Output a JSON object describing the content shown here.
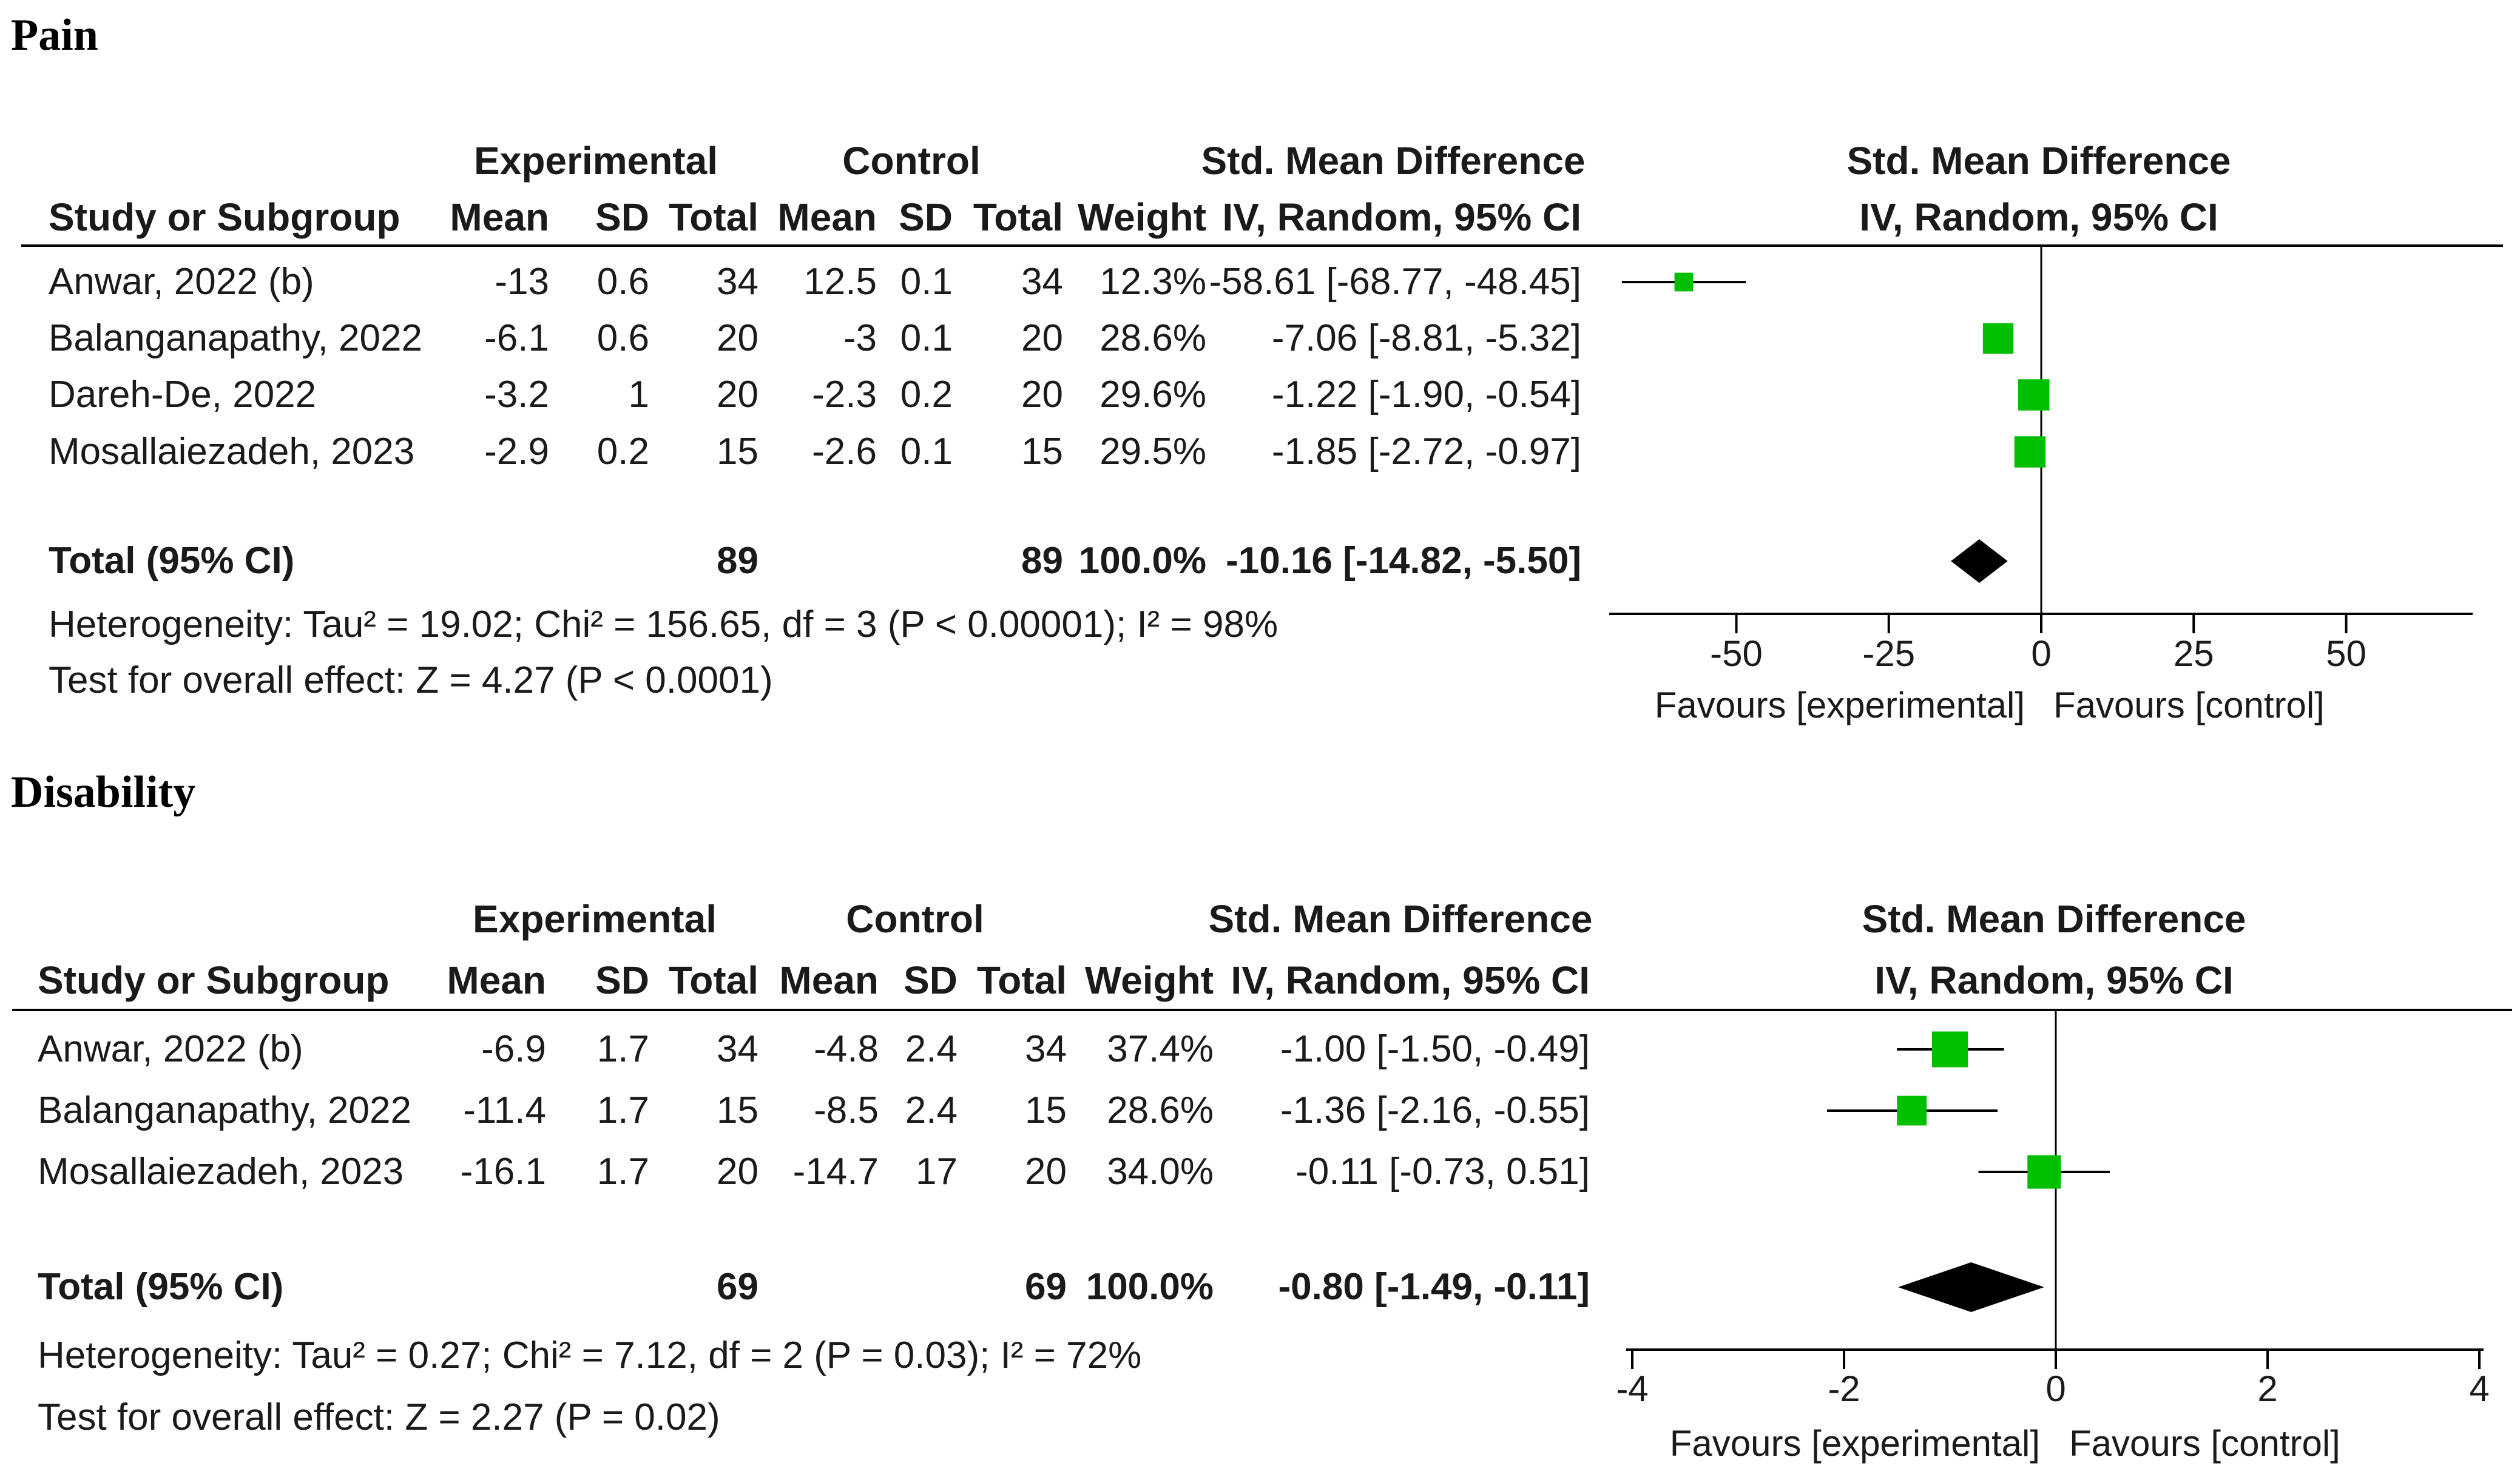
{
  "chart_data": [
    {
      "type": "forest",
      "title": "Pain",
      "group_headers": {
        "experimental": "Experimental",
        "control": "Control",
        "smd": "Std. Mean Difference",
        "plot": "Std. Mean Difference"
      },
      "column_headers": {
        "study": "Study or Subgroup",
        "mean": "Mean",
        "sd": "SD",
        "total": "Total",
        "weight": "Weight",
        "ci": "IV, Random, 95% CI",
        "plot_ci": "IV, Random, 95% CI"
      },
      "studies": [
        {
          "name": "Anwar, 2022 (b)",
          "exp_mean": "-13",
          "exp_sd": "0.6",
          "exp_total": "34",
          "ctl_mean": "12.5",
          "ctl_sd": "0.1",
          "ctl_total": "34",
          "weight": "12.3%",
          "ci": "-58.61 [-68.77, -48.45]",
          "est": -58.61,
          "lo": -68.77,
          "hi": -48.45,
          "w": 12.3
        },
        {
          "name": "Balanganapathy, 2022",
          "exp_mean": "-6.1",
          "exp_sd": "0.6",
          "exp_total": "20",
          "ctl_mean": "-3",
          "ctl_sd": "0.1",
          "ctl_total": "20",
          "weight": "28.6%",
          "ci": "-7.06 [-8.81, -5.32]",
          "est": -7.06,
          "lo": -8.81,
          "hi": -5.32,
          "w": 28.6
        },
        {
          "name": "Dareh-De, 2022",
          "exp_mean": "-3.2",
          "exp_sd": "1",
          "exp_total": "20",
          "ctl_mean": "-2.3",
          "ctl_sd": "0.2",
          "ctl_total": "20",
          "weight": "29.6%",
          "ci": "-1.22 [-1.90, -0.54]",
          "est": -1.22,
          "lo": -1.9,
          "hi": -0.54,
          "w": 29.6
        },
        {
          "name": "Mosallaiezadeh, 2023",
          "exp_mean": "-2.9",
          "exp_sd": "0.2",
          "exp_total": "15",
          "ctl_mean": "-2.6",
          "ctl_sd": "0.1",
          "ctl_total": "15",
          "weight": "29.5%",
          "ci": "-1.85 [-2.72, -0.97]",
          "est": -1.85,
          "lo": -2.72,
          "hi": -0.97,
          "w": 29.5
        }
      ],
      "total": {
        "label": "Total (95% CI)",
        "exp_total": "89",
        "ctl_total": "89",
        "weight": "100.0%",
        "ci": "-10.16 [-14.82, -5.50]",
        "est": -10.16,
        "lo": -14.82,
        "hi": -5.5
      },
      "heterogeneity": "Heterogeneity: Tau² = 19.02; Chi² = 156.65, df = 3 (P < 0.00001); I² = 98%",
      "overall_effect": "Test for overall effect: Z = 4.27 (P < 0.0001)",
      "axis": {
        "range": [
          -70,
          70
        ],
        "ticks": [
          -50,
          -25,
          0,
          25,
          50
        ],
        "tick_labels": [
          "-50",
          "-25",
          "0",
          "25",
          "50"
        ]
      },
      "favours": {
        "left": "Favours [experimental]",
        "right": "Favours [control]"
      }
    },
    {
      "type": "forest",
      "title": "Disability",
      "group_headers": {
        "experimental": "Experimental",
        "control": "Control",
        "smd": "Std. Mean Difference",
        "plot": "Std. Mean Difference"
      },
      "column_headers": {
        "study": "Study or Subgroup",
        "mean": "Mean",
        "sd": "SD",
        "total": "Total",
        "weight": "Weight",
        "ci": "IV, Random, 95% CI",
        "plot_ci": "IV, Random, 95% CI"
      },
      "studies": [
        {
          "name": "Anwar, 2022 (b)",
          "exp_mean": "-6.9",
          "exp_sd": "1.7",
          "exp_total": "34",
          "ctl_mean": "-4.8",
          "ctl_sd": "2.4",
          "ctl_total": "34",
          "weight": "37.4%",
          "ci": "-1.00 [-1.50, -0.49]",
          "est": -1.0,
          "lo": -1.5,
          "hi": -0.49,
          "w": 37.4
        },
        {
          "name": "Balanganapathy, 2022",
          "exp_mean": "-11.4",
          "exp_sd": "1.7",
          "exp_total": "15",
          "ctl_mean": "-8.5",
          "ctl_sd": "2.4",
          "ctl_total": "15",
          "weight": "28.6%",
          "ci": "-1.36 [-2.16, -0.55]",
          "est": -1.36,
          "lo": -2.16,
          "hi": -0.55,
          "w": 28.6
        },
        {
          "name": "Mosallaiezadeh, 2023",
          "exp_mean": "-16.1",
          "exp_sd": "1.7",
          "exp_total": "20",
          "ctl_mean": "-14.7",
          "ctl_sd": "17",
          "ctl_total": "20",
          "weight": "34.0%",
          "ci": "-0.11 [-0.73, 0.51]",
          "est": -0.11,
          "lo": -0.73,
          "hi": 0.51,
          "w": 34.0
        }
      ],
      "total": {
        "label": "Total (95% CI)",
        "exp_total": "69",
        "ctl_total": "69",
        "weight": "100.0%",
        "ci": "-0.80 [-1.49, -0.11]",
        "est": -0.8,
        "lo": -1.49,
        "hi": -0.11
      },
      "heterogeneity": "Heterogeneity: Tau² = 0.27; Chi² = 7.12, df = 2 (P = 0.03); I² = 72%",
      "overall_effect": "Test for overall effect: Z = 2.27 (P = 0.02)",
      "axis": {
        "range": [
          -4,
          4
        ],
        "ticks": [
          -4,
          -2,
          0,
          2,
          4
        ],
        "tick_labels": [
          "-4",
          "-2",
          "0",
          "2",
          "4"
        ]
      },
      "favours": {
        "left": "Favours [experimental]",
        "right": "Favours [control]"
      }
    }
  ],
  "colors": {
    "marker": "#00bf00",
    "diamond": "#000000",
    "line": "#000000",
    "text": "#1a1a1a"
  }
}
